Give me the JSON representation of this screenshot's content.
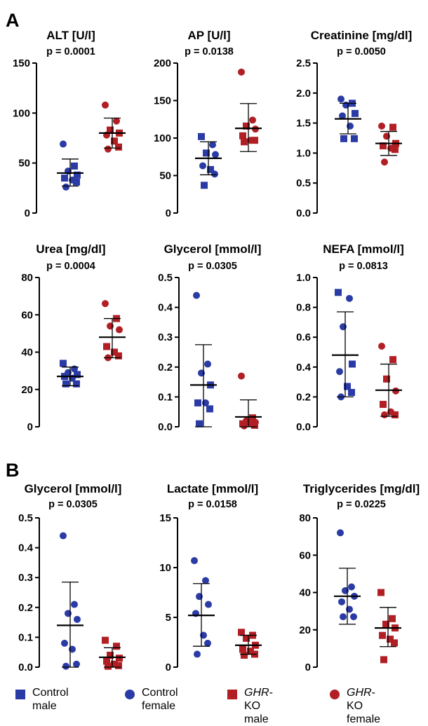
{
  "panels": [
    {
      "letter": "A"
    },
    {
      "letter": "B"
    }
  ],
  "chart_data": [
    {
      "type": "scatter",
      "panel": "A",
      "title": "ALT [U/l]",
      "pvalue": "p = 0.0001",
      "ylim": [
        0,
        150
      ],
      "yticks": [
        0,
        50,
        100,
        150
      ],
      "ytick_labels": [
        "0",
        "50",
        "100",
        "150"
      ],
      "groups": [
        {
          "group": "control",
          "mean": 40,
          "sd_low": 27,
          "sd_high": 54,
          "points": [
            {
              "y": 69,
              "s": "circle"
            },
            {
              "y": 47,
              "s": "square"
            },
            {
              "y": 42,
              "s": "circle"
            },
            {
              "y": 38,
              "s": "square"
            },
            {
              "y": 35,
              "s": "square"
            },
            {
              "y": 33,
              "s": "circle"
            },
            {
              "y": 31,
              "s": "square"
            },
            {
              "y": 26,
              "s": "circle"
            }
          ]
        },
        {
          "group": "ghr",
          "mean": 80,
          "sd_low": 65,
          "sd_high": 95,
          "points": [
            {
              "y": 108,
              "s": "circle"
            },
            {
              "y": 92,
              "s": "circle"
            },
            {
              "y": 83,
              "s": "square"
            },
            {
              "y": 80,
              "s": "square"
            },
            {
              "y": 78,
              "s": "circle"
            },
            {
              "y": 72,
              "s": "square"
            },
            {
              "y": 66,
              "s": "square"
            },
            {
              "y": 64,
              "s": "circle"
            }
          ]
        }
      ]
    },
    {
      "type": "scatter",
      "panel": "A",
      "title": "AP [U/l]",
      "pvalue": "p = 0.0138",
      "ylim": [
        0,
        200
      ],
      "yticks": [
        0,
        50,
        100,
        150,
        200
      ],
      "ytick_labels": [
        "0",
        "50",
        "100",
        "150",
        "200"
      ],
      "groups": [
        {
          "group": "control",
          "mean": 73,
          "sd_low": 51,
          "sd_high": 95,
          "points": [
            {
              "y": 102,
              "s": "square"
            },
            {
              "y": 91,
              "s": "circle"
            },
            {
              "y": 80,
              "s": "square"
            },
            {
              "y": 78,
              "s": "circle"
            },
            {
              "y": 63,
              "s": "circle"
            },
            {
              "y": 58,
              "s": "square"
            },
            {
              "y": 52,
              "s": "circle"
            },
            {
              "y": 37,
              "s": "square"
            }
          ]
        },
        {
          "group": "ghr",
          "mean": 113,
          "sd_low": 82,
          "sd_high": 146,
          "points": [
            {
              "y": 188,
              "s": "circle"
            },
            {
              "y": 124,
              "s": "circle"
            },
            {
              "y": 116,
              "s": "square"
            },
            {
              "y": 112,
              "s": "circle"
            },
            {
              "y": 103,
              "s": "square"
            },
            {
              "y": 97,
              "s": "circle"
            },
            {
              "y": 97,
              "s": "square"
            },
            {
              "y": 95,
              "s": "square"
            }
          ]
        }
      ]
    },
    {
      "type": "scatter",
      "panel": "A",
      "title": "Creatinine [mg/dl]",
      "pvalue": "p = 0.0050",
      "ylim": [
        0,
        2.5
      ],
      "yticks": [
        0,
        0.5,
        1.0,
        1.5,
        2.0,
        2.5
      ],
      "ytick_labels": [
        "0.0",
        "0.5",
        "1.0",
        "1.5",
        "2.0",
        "2.5"
      ],
      "groups": [
        {
          "group": "control",
          "mean": 1.57,
          "sd_low": 1.32,
          "sd_high": 1.83,
          "points": [
            {
              "y": 1.9,
              "s": "circle"
            },
            {
              "y": 1.83,
              "s": "square"
            },
            {
              "y": 1.8,
              "s": "circle"
            },
            {
              "y": 1.66,
              "s": "square"
            },
            {
              "y": 1.62,
              "s": "circle"
            },
            {
              "y": 1.45,
              "s": "circle"
            },
            {
              "y": 1.24,
              "s": "square"
            },
            {
              "y": 1.24,
              "s": "square"
            }
          ]
        },
        {
          "group": "ghr",
          "mean": 1.16,
          "sd_low": 0.96,
          "sd_high": 1.36,
          "points": [
            {
              "y": 1.45,
              "s": "circle"
            },
            {
              "y": 1.43,
              "s": "square"
            },
            {
              "y": 1.28,
              "s": "circle"
            },
            {
              "y": 1.16,
              "s": "square"
            },
            {
              "y": 1.12,
              "s": "square"
            },
            {
              "y": 1.08,
              "s": "circle"
            },
            {
              "y": 1.06,
              "s": "square"
            },
            {
              "y": 0.85,
              "s": "circle"
            }
          ]
        }
      ]
    },
    {
      "type": "scatter",
      "panel": "A",
      "title": "Urea [mg/dl]",
      "pvalue": "p = 0.0004",
      "ylim": [
        0,
        80
      ],
      "yticks": [
        0,
        20,
        40,
        60,
        80
      ],
      "ytick_labels": [
        "0",
        "20",
        "40",
        "60",
        "80"
      ],
      "groups": [
        {
          "group": "control",
          "mean": 27,
          "sd_low": 22,
          "sd_high": 32,
          "points": [
            {
              "y": 34,
              "s": "square"
            },
            {
              "y": 31,
              "s": "circle"
            },
            {
              "y": 29,
              "s": "circle"
            },
            {
              "y": 28,
              "s": "square"
            },
            {
              "y": 27,
              "s": "square"
            },
            {
              "y": 26,
              "s": "circle"
            },
            {
              "y": 23,
              "s": "square"
            },
            {
              "y": 23,
              "s": "square"
            }
          ]
        },
        {
          "group": "ghr",
          "mean": 48,
          "sd_low": 37,
          "sd_high": 58,
          "points": [
            {
              "y": 66,
              "s": "circle"
            },
            {
              "y": 58,
              "s": "square"
            },
            {
              "y": 54,
              "s": "circle"
            },
            {
              "y": 52,
              "s": "circle"
            },
            {
              "y": 43,
              "s": "square"
            },
            {
              "y": 40,
              "s": "square"
            },
            {
              "y": 38,
              "s": "square"
            },
            {
              "y": 37,
              "s": "circle"
            }
          ]
        }
      ]
    },
    {
      "type": "scatter",
      "panel": "A",
      "title": "Glycerol [mmol/l]",
      "pvalue": "p = 0.0305",
      "ylim": [
        0,
        0.5
      ],
      "yticks": [
        0,
        0.1,
        0.2,
        0.3,
        0.4,
        0.5
      ],
      "ytick_labels": [
        "0.0",
        "0.1",
        "0.2",
        "0.3",
        "0.4",
        "0.5"
      ],
      "groups": [
        {
          "group": "control",
          "mean": 0.14,
          "sd_low": 0.0,
          "sd_high": 0.275,
          "points": [
            {
              "y": 0.44,
              "s": "circle"
            },
            {
              "y": 0.21,
              "s": "circle"
            },
            {
              "y": 0.18,
              "s": "circle"
            },
            {
              "y": 0.14,
              "s": "square"
            },
            {
              "y": 0.08,
              "s": "square"
            },
            {
              "y": 0.08,
              "s": "circle"
            },
            {
              "y": 0.06,
              "s": "square"
            },
            {
              "y": 0.01,
              "s": "square"
            }
          ]
        },
        {
          "group": "ghr",
          "mean": 0.033,
          "sd_low": 0.0,
          "sd_high": 0.09,
          "points": [
            {
              "y": 0.17,
              "s": "circle"
            },
            {
              "y": 0.03,
              "s": "square"
            },
            {
              "y": 0.02,
              "s": "circle"
            },
            {
              "y": 0.015,
              "s": "circle"
            },
            {
              "y": 0.01,
              "s": "square"
            },
            {
              "y": 0.01,
              "s": "circle"
            },
            {
              "y": 0.005,
              "s": "square"
            },
            {
              "y": 0.003,
              "s": "circle"
            }
          ]
        }
      ]
    },
    {
      "type": "scatter",
      "panel": "A",
      "title": "NEFA [mmol/l]",
      "pvalue": "p = 0.0813",
      "ylim": [
        0,
        1.0
      ],
      "yticks": [
        0,
        0.2,
        0.4,
        0.6,
        0.8,
        1.0
      ],
      "ytick_labels": [
        "0.0",
        "0.2",
        "0.4",
        "0.6",
        "0.8",
        "1.0"
      ],
      "groups": [
        {
          "group": "control",
          "mean": 0.48,
          "sd_low": 0.2,
          "sd_high": 0.77,
          "points": [
            {
              "y": 0.9,
              "s": "square"
            },
            {
              "y": 0.86,
              "s": "circle"
            },
            {
              "y": 0.67,
              "s": "circle"
            },
            {
              "y": 0.42,
              "s": "square"
            },
            {
              "y": 0.37,
              "s": "circle"
            },
            {
              "y": 0.27,
              "s": "square"
            },
            {
              "y": 0.23,
              "s": "square"
            },
            {
              "y": 0.2,
              "s": "circle"
            }
          ]
        },
        {
          "group": "ghr",
          "mean": 0.245,
          "sd_low": 0.07,
          "sd_high": 0.42,
          "points": [
            {
              "y": 0.54,
              "s": "circle"
            },
            {
              "y": 0.45,
              "s": "square"
            },
            {
              "y": 0.32,
              "s": "square"
            },
            {
              "y": 0.24,
              "s": "circle"
            },
            {
              "y": 0.15,
              "s": "square"
            },
            {
              "y": 0.1,
              "s": "circle"
            },
            {
              "y": 0.08,
              "s": "square"
            },
            {
              "y": 0.08,
              "s": "circle"
            }
          ]
        }
      ]
    },
    {
      "type": "scatter",
      "panel": "B",
      "title": "Glycerol [mmol/l]",
      "pvalue": "p = 0.0305",
      "ylim": [
        0,
        0.5
      ],
      "yticks": [
        0,
        0.1,
        0.2,
        0.3,
        0.4,
        0.5
      ],
      "ytick_labels": [
        "0.0",
        "0.1",
        "0.2",
        "0.3",
        "0.4",
        "0.5"
      ],
      "groups": [
        {
          "group": "control",
          "mean": 0.14,
          "sd_low": 0.0,
          "sd_high": 0.285,
          "points": [
            {
              "y": 0.44,
              "s": "circle"
            },
            {
              "y": 0.21,
              "s": "circle"
            },
            {
              "y": 0.18,
              "s": "circle"
            },
            {
              "y": 0.16,
              "s": "circle"
            },
            {
              "y": 0.08,
              "s": "circle"
            },
            {
              "y": 0.06,
              "s": "circle"
            },
            {
              "y": 0.01,
              "s": "circle"
            },
            {
              "y": 0.003,
              "s": "circle"
            }
          ]
        },
        {
          "group": "ghr",
          "mean": 0.033,
          "sd_low": 0.0,
          "sd_high": 0.065,
          "points": [
            {
              "y": 0.09,
              "s": "square"
            },
            {
              "y": 0.07,
              "s": "square"
            },
            {
              "y": 0.04,
              "s": "square"
            },
            {
              "y": 0.03,
              "s": "square"
            },
            {
              "y": 0.02,
              "s": "square"
            },
            {
              "y": 0.01,
              "s": "square"
            },
            {
              "y": 0.005,
              "s": "square"
            },
            {
              "y": 0.003,
              "s": "square"
            }
          ]
        }
      ]
    },
    {
      "type": "scatter",
      "panel": "B",
      "title": "Lactate [mmol/l]",
      "pvalue": "p = 0.0158",
      "ylim": [
        0,
        15
      ],
      "yticks": [
        0,
        5,
        10,
        15
      ],
      "ytick_labels": [
        "0",
        "5",
        "10",
        "15"
      ],
      "groups": [
        {
          "group": "control",
          "mean": 5.2,
          "sd_low": 2.1,
          "sd_high": 8.4,
          "points": [
            {
              "y": 10.7,
              "s": "circle"
            },
            {
              "y": 8.7,
              "s": "circle"
            },
            {
              "y": 7.1,
              "s": "circle"
            },
            {
              "y": 6.3,
              "s": "circle"
            },
            {
              "y": 5.4,
              "s": "circle"
            },
            {
              "y": 3.2,
              "s": "circle"
            },
            {
              "y": 2.4,
              "s": "circle"
            },
            {
              "y": 1.3,
              "s": "circle"
            }
          ]
        },
        {
          "group": "ghr",
          "mean": 2.2,
          "sd_low": 1.3,
          "sd_high": 3.2,
          "points": [
            {
              "y": 3.5,
              "s": "square"
            },
            {
              "y": 3.2,
              "s": "square"
            },
            {
              "y": 2.9,
              "s": "square"
            },
            {
              "y": 2.2,
              "s": "square"
            },
            {
              "y": 1.8,
              "s": "square"
            },
            {
              "y": 1.6,
              "s": "square"
            },
            {
              "y": 1.3,
              "s": "square"
            },
            {
              "y": 1.2,
              "s": "square"
            }
          ]
        }
      ]
    },
    {
      "type": "scatter",
      "panel": "B",
      "title": "Triglycerides [mg/dl]",
      "pvalue": "p = 0.0225",
      "ylim": [
        0,
        80
      ],
      "yticks": [
        0,
        20,
        40,
        60,
        80
      ],
      "ytick_labels": [
        "0",
        "20",
        "40",
        "60",
        "80"
      ],
      "groups": [
        {
          "group": "control",
          "mean": 38,
          "sd_low": 23,
          "sd_high": 53,
          "points": [
            {
              "y": 72,
              "s": "circle"
            },
            {
              "y": 43,
              "s": "circle"
            },
            {
              "y": 41,
              "s": "circle"
            },
            {
              "y": 38,
              "s": "circle"
            },
            {
              "y": 35,
              "s": "circle"
            },
            {
              "y": 31,
              "s": "circle"
            },
            {
              "y": 27,
              "s": "circle"
            },
            {
              "y": 27,
              "s": "circle"
            }
          ]
        },
        {
          "group": "ghr",
          "mean": 21,
          "sd_low": 11,
          "sd_high": 32,
          "points": [
            {
              "y": 40,
              "s": "square"
            },
            {
              "y": 26,
              "s": "square"
            },
            {
              "y": 23,
              "s": "square"
            },
            {
              "y": 21,
              "s": "square"
            },
            {
              "y": 17,
              "s": "square"
            },
            {
              "y": 15,
              "s": "square"
            },
            {
              "y": 13,
              "s": "square"
            },
            {
              "y": 4,
              "s": "square"
            }
          ]
        }
      ]
    }
  ],
  "colors": {
    "control": "#2b3ba6",
    "ghr": "#b11f24",
    "axis": "#000000"
  },
  "legend": [
    {
      "shape": "square",
      "color_key": "control",
      "line1": "Control",
      "line1_italic": "",
      "line2": "male"
    },
    {
      "shape": "circle",
      "color_key": "control",
      "line1": "Control",
      "line1_italic": "",
      "line2": "female"
    },
    {
      "shape": "square",
      "color_key": "ghr",
      "line1": "-KO",
      "line1_italic": "GHR",
      "line2": "male"
    },
    {
      "shape": "circle",
      "color_key": "ghr",
      "line1": "-KO",
      "line1_italic": "GHR",
      "line2": "female"
    }
  ]
}
